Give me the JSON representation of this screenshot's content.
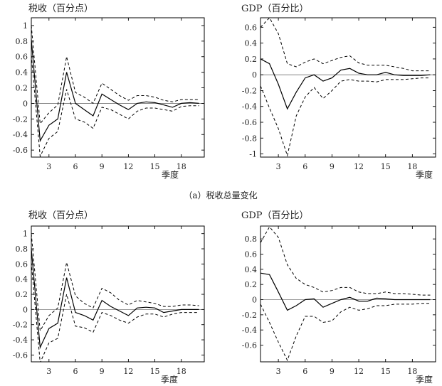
{
  "caption": "（a）税收总量变化",
  "chart_data": [
    {
      "type": "line",
      "title": "税收（百分点）",
      "xlabel": "季度",
      "xticks": [
        3,
        6,
        9,
        12,
        15,
        18
      ],
      "xlim": [
        1,
        20.6
      ],
      "yticks": [
        -0.6,
        -0.4,
        -0.2,
        0,
        0.2,
        0.4,
        0.6,
        0.8,
        1
      ],
      "tick_labels_y": [
        "-0.6",
        "-0.4",
        "-0.2",
        "0",
        "0.2",
        "0.4",
        "0.6",
        "0.8",
        "1"
      ],
      "ylim": [
        -0.69,
        1.1
      ],
      "zero_line": true,
      "x": [
        1,
        2,
        3,
        4,
        5,
        6,
        7,
        8,
        9,
        10,
        11,
        12,
        13,
        14,
        15,
        16,
        17,
        18,
        19,
        20
      ],
      "series": [
        {
          "role": "estimate",
          "style": "solid",
          "values": [
            0.82,
            -0.48,
            -0.28,
            -0.2,
            0.4,
            0.0,
            -0.08,
            -0.16,
            0.12,
            0.05,
            -0.02,
            -0.08,
            0.0,
            0.02,
            0.01,
            -0.02,
            -0.05,
            0.0,
            0.01,
            0.0
          ]
        },
        {
          "role": "upper",
          "style": "dashed",
          "values": [
            1.0,
            -0.26,
            -0.12,
            -0.02,
            0.6,
            0.14,
            0.08,
            0.0,
            0.26,
            0.18,
            0.1,
            0.04,
            0.1,
            0.1,
            0.08,
            0.04,
            0.02,
            0.05,
            0.05,
            0.05
          ]
        },
        {
          "role": "lower",
          "style": "dashed",
          "values": [
            0.62,
            -0.68,
            -0.45,
            -0.36,
            0.18,
            -0.2,
            -0.24,
            -0.32,
            -0.05,
            -0.08,
            -0.14,
            -0.2,
            -0.1,
            -0.06,
            -0.06,
            -0.08,
            -0.1,
            -0.04,
            -0.03,
            -0.03
          ]
        }
      ]
    },
    {
      "type": "line",
      "title": "GDP（百分比）",
      "xlabel": "季度",
      "xticks": [
        3,
        6,
        9,
        12,
        15,
        18
      ],
      "xlim": [
        1,
        20.6
      ],
      "yticks": [
        -1,
        -0.8,
        -0.6,
        -0.4,
        -0.2,
        0,
        0.2,
        0.4,
        0.6
      ],
      "tick_labels_y": [
        "-1",
        "-0.8",
        "-0.6",
        "-0.4",
        "-0.2",
        "0",
        "0.2",
        "0.4",
        "0.6"
      ],
      "ylim": [
        -1.04,
        0.72
      ],
      "zero_line": true,
      "x": [
        1,
        2,
        3,
        4,
        5,
        6,
        7,
        8,
        9,
        10,
        11,
        12,
        13,
        14,
        15,
        16,
        17,
        18,
        19,
        20
      ],
      "series": [
        {
          "role": "estimate",
          "style": "solid",
          "values": [
            0.2,
            0.14,
            -0.12,
            -0.43,
            -0.22,
            -0.04,
            0.0,
            -0.08,
            -0.04,
            0.06,
            0.08,
            0.02,
            0.0,
            0.0,
            0.03,
            0.0,
            -0.01,
            -0.01,
            -0.01,
            0.0
          ]
        },
        {
          "role": "upper",
          "style": "dashed",
          "values": [
            0.6,
            0.72,
            0.52,
            0.14,
            0.1,
            0.16,
            0.2,
            0.14,
            0.18,
            0.22,
            0.24,
            0.15,
            0.12,
            0.12,
            0.12,
            0.1,
            0.08,
            0.05,
            0.05,
            0.05
          ]
        },
        {
          "role": "lower",
          "style": "dashed",
          "values": [
            -0.14,
            -0.42,
            -0.68,
            -1.02,
            -0.52,
            -0.28,
            -0.16,
            -0.3,
            -0.2,
            -0.08,
            -0.06,
            -0.08,
            -0.08,
            -0.09,
            -0.06,
            -0.06,
            -0.06,
            -0.05,
            -0.04,
            -0.04
          ]
        }
      ]
    },
    {
      "type": "line",
      "title": "税收（百分点）",
      "xlabel": "季度",
      "xticks": [
        3,
        6,
        9,
        12,
        15,
        18
      ],
      "xlim": [
        1,
        20.6
      ],
      "yticks": [
        -0.6,
        -0.4,
        -0.2,
        0,
        0.2,
        0.4,
        0.6,
        0.8,
        1
      ],
      "tick_labels_y": [
        "-0.6",
        "-0.4",
        "-0.2",
        "0",
        "0.2",
        "0.4",
        "0.6",
        "0.8",
        "1"
      ],
      "ylim": [
        -0.69,
        1.1
      ],
      "zero_line": true,
      "x": [
        1,
        2,
        3,
        4,
        5,
        6,
        7,
        8,
        9,
        10,
        11,
        12,
        13,
        14,
        15,
        16,
        17,
        18,
        19,
        20
      ],
      "series": [
        {
          "role": "estimate",
          "style": "solid",
          "values": [
            0.8,
            -0.5,
            -0.25,
            -0.18,
            0.42,
            -0.04,
            -0.08,
            -0.14,
            0.12,
            0.04,
            -0.02,
            -0.08,
            0.02,
            0.03,
            0.02,
            -0.04,
            -0.02,
            0.0,
            0.0,
            0.0
          ]
        },
        {
          "role": "upper",
          "style": "dashed",
          "values": [
            1.0,
            -0.28,
            -0.08,
            0.02,
            0.62,
            0.18,
            0.08,
            0.02,
            0.28,
            0.22,
            0.12,
            0.06,
            0.12,
            0.1,
            0.08,
            0.04,
            0.04,
            0.06,
            0.06,
            0.05
          ]
        },
        {
          "role": "lower",
          "style": "dashed",
          "values": [
            0.62,
            -0.7,
            -0.44,
            -0.38,
            0.2,
            -0.22,
            -0.24,
            -0.3,
            -0.04,
            -0.08,
            -0.14,
            -0.18,
            -0.1,
            -0.06,
            -0.06,
            -0.1,
            -0.06,
            -0.04,
            -0.04,
            -0.04
          ]
        }
      ]
    },
    {
      "type": "line",
      "title": "GDP（百分比）",
      "xlabel": "季度",
      "xticks": [
        3,
        6,
        9,
        12,
        15,
        18
      ],
      "xlim": [
        1,
        20.6
      ],
      "yticks": [
        -0.6,
        -0.4,
        -0.2,
        0,
        0.2,
        0.4,
        0.6,
        0.8
      ],
      "tick_labels_y": [
        "-0.6",
        "-0.4",
        "-0.2",
        "0",
        "0.2",
        "0.4",
        "0.6",
        "0.8"
      ],
      "ylim": [
        -0.82,
        0.97
      ],
      "zero_line": true,
      "x": [
        1,
        2,
        3,
        4,
        5,
        6,
        7,
        8,
        9,
        10,
        11,
        12,
        13,
        14,
        15,
        16,
        17,
        18,
        19,
        20
      ],
      "series": [
        {
          "role": "estimate",
          "style": "solid",
          "values": [
            0.35,
            0.33,
            0.1,
            -0.14,
            -0.08,
            0.0,
            0.01,
            -0.1,
            -0.05,
            0.0,
            0.03,
            -0.02,
            -0.02,
            0.02,
            0.01,
            0.0,
            0.0,
            0.0,
            0.0,
            0.0
          ]
        },
        {
          "role": "upper",
          "style": "dashed",
          "values": [
            0.75,
            0.96,
            0.82,
            0.46,
            0.28,
            0.2,
            0.16,
            0.1,
            0.12,
            0.16,
            0.16,
            0.1,
            0.08,
            0.08,
            0.1,
            0.08,
            0.08,
            0.07,
            0.06,
            0.06
          ]
        },
        {
          "role": "lower",
          "style": "dashed",
          "values": [
            -0.06,
            -0.3,
            -0.56,
            -0.8,
            -0.48,
            -0.22,
            -0.22,
            -0.3,
            -0.28,
            -0.16,
            -0.1,
            -0.14,
            -0.12,
            -0.08,
            -0.08,
            -0.06,
            -0.06,
            -0.06,
            -0.05,
            -0.05
          ]
        }
      ]
    }
  ]
}
